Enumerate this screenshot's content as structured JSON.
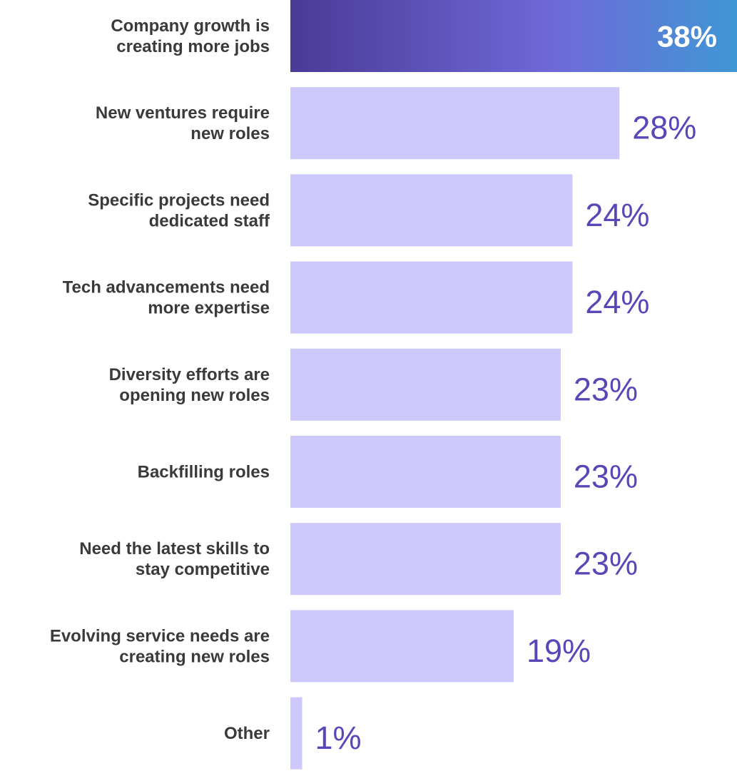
{
  "chart_data": {
    "type": "bar",
    "orientation": "horizontal",
    "categories": [
      [
        "Company growth is",
        "creating more jobs"
      ],
      [
        "New ventures require",
        "new roles"
      ],
      [
        "Specific projects need",
        "dedicated staff"
      ],
      [
        "Tech advancements need",
        "more expertise"
      ],
      [
        "Diversity efforts are",
        "opening new roles"
      ],
      [
        "Backfilling roles"
      ],
      [
        "Need the latest skills to",
        "stay competitive"
      ],
      [
        "Evolving service needs are",
        "creating new roles"
      ],
      [
        "Other"
      ]
    ],
    "values": [
      38,
      28,
      24,
      24,
      23,
      23,
      23,
      19,
      1
    ],
    "value_labels": [
      "38%",
      "28%",
      "24%",
      "24%",
      "23%",
      "23%",
      "23%",
      "19%",
      "1%"
    ],
    "highlight_index": 0,
    "xlim": [
      0,
      38
    ],
    "grid": false,
    "legend": "none",
    "colors": {
      "highlight_gradient": [
        "#4b3a96",
        "#6f6ad9",
        "#3f97d4"
      ],
      "bar": "#cdc9fb",
      "value_text": "#5b46b8",
      "highlight_value_text": "#ffffff",
      "label_text": "#3a3a3a"
    }
  }
}
